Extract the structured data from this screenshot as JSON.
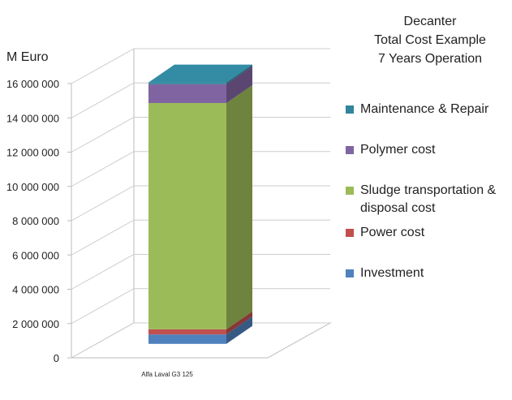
{
  "chart_data": {
    "type": "bar3d_stacked",
    "title": [
      "Decanter",
      "Total Cost Example",
      "7 Years Operation"
    ],
    "y_label": "M Euro",
    "categories": [
      "Alfa Laval G3 125"
    ],
    "series": [
      {
        "name": "Investment",
        "color": "#4f81bd",
        "values": [
          550000
        ]
      },
      {
        "name": "Power cost",
        "color": "#c0504d",
        "values": [
          300000
        ]
      },
      {
        "name": "Sludge transportation & disposal cost",
        "color": "#9bbb59",
        "values": [
          13200000
        ]
      },
      {
        "name": "Polymer cost",
        "color": "#8064a2",
        "values": [
          1100000
        ]
      },
      {
        "name": "Maintenance & Repair",
        "color": "#31859c",
        "values": [
          100000
        ]
      }
    ],
    "ylim": [
      0,
      16000000
    ],
    "yticks": [
      {
        "value": 0,
        "label": "0"
      },
      {
        "value": 2000000,
        "label": "2 000 000"
      },
      {
        "value": 4000000,
        "label": "4 000 000"
      },
      {
        "value": 6000000,
        "label": "6 000 000"
      },
      {
        "value": 8000000,
        "label": "8 000 000"
      },
      {
        "value": 10000000,
        "label": "10 000 000"
      },
      {
        "value": 12000000,
        "label": "12 000 000"
      },
      {
        "value": 14000000,
        "label": "14 000 000"
      },
      {
        "value": 16000000,
        "label": "16 000 000"
      }
    ],
    "grid": true
  }
}
